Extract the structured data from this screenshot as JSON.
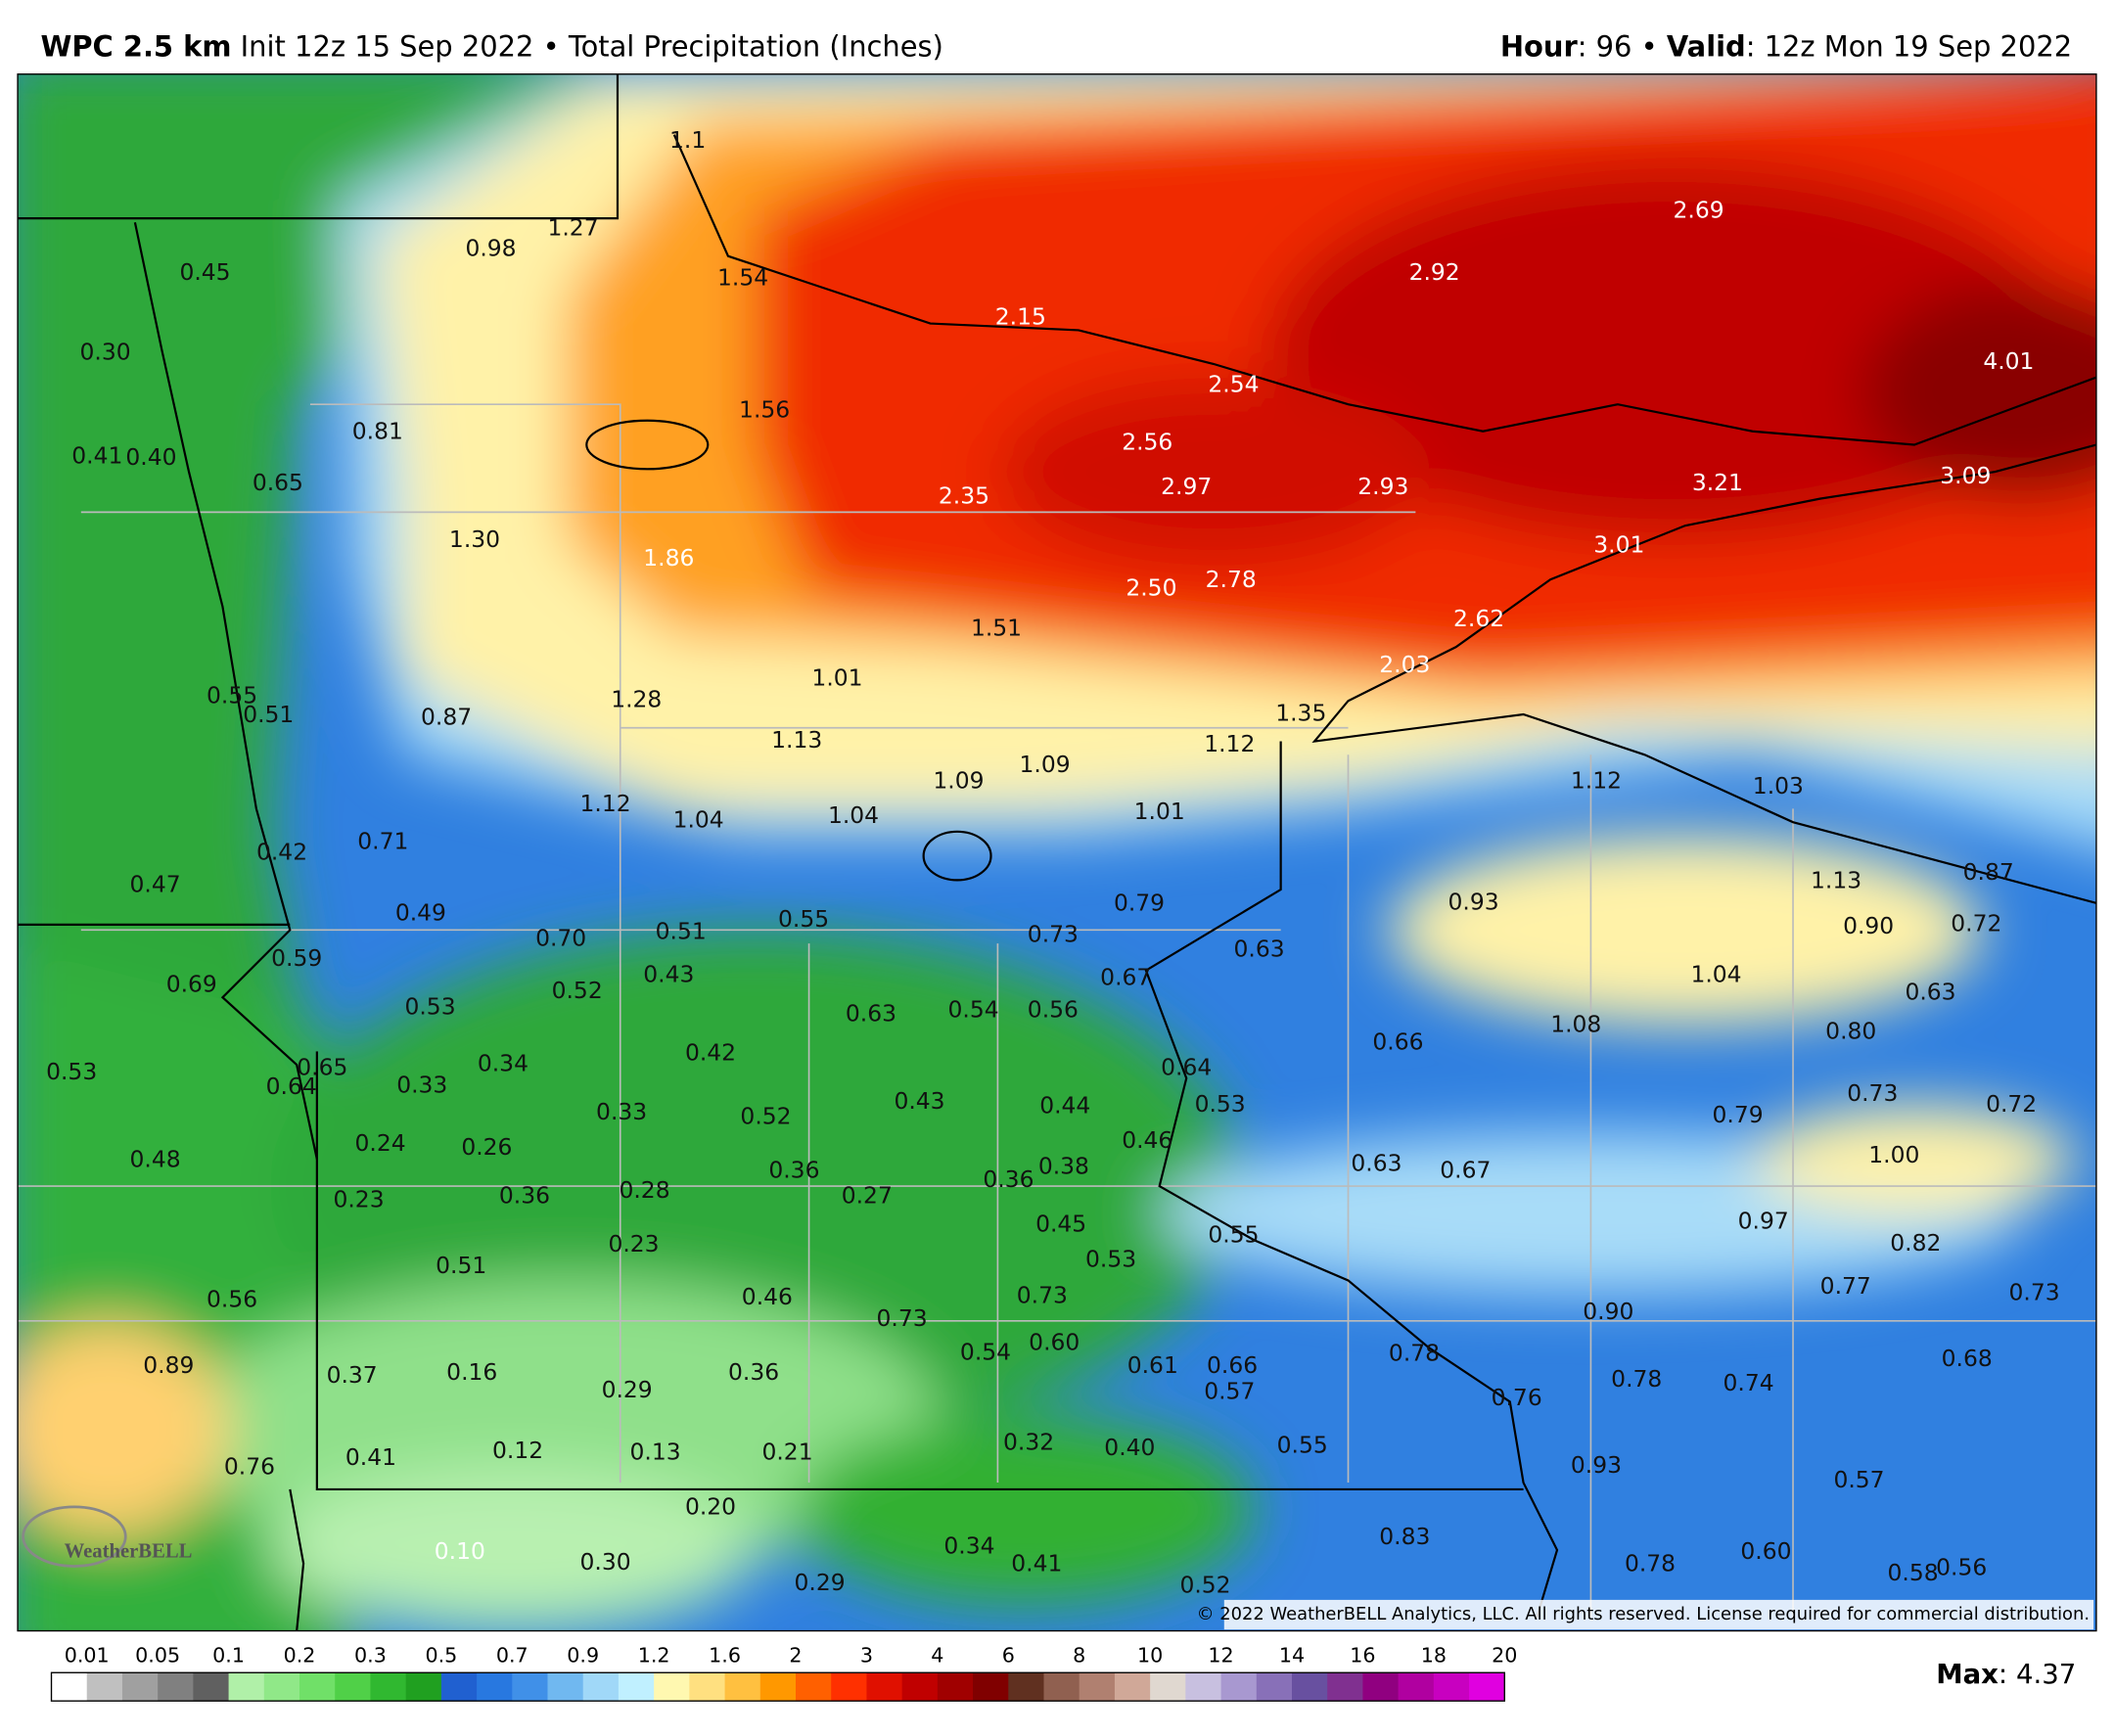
{
  "header": {
    "model": "WPC 2.5 km",
    "description": "Init 12z 15 Sep 2022 • Total Precipitation (Inches)",
    "hour_label": "Hour",
    "hour_value": ": 96 •",
    "valid_label": "Valid",
    "valid_value": ": 12z Mon 19 Sep 2022"
  },
  "map_labels": [
    "1.1",
    "0.45",
    "0.98",
    "1.27",
    "1.54",
    "2.15",
    "2.69",
    "2.92",
    "4.01",
    "2.54",
    "0.30",
    "0.81",
    "1.56",
    "2.56",
    "0.41",
    "0.40",
    "0.65",
    "2.35",
    "2.97",
    "2.93",
    "3.21",
    "3.09",
    "1.30",
    "1.86",
    "3.01",
    "2.50",
    "2.78",
    "2.62",
    "1.51",
    "1.01",
    "2.03",
    "0.55",
    "0.51",
    "0.87",
    "1.28",
    "1.35",
    "1.13",
    "1.12",
    "1.09",
    "1.09",
    "1.12",
    "1.03",
    "1.12",
    "1.04",
    "1.04",
    "1.01",
    "0.42",
    "0.71",
    "0.47",
    "0.79",
    "0.93",
    "1.13",
    "0.87",
    "0.49",
    "0.70",
    "0.51",
    "0.55",
    "0.73",
    "0.63",
    "0.90",
    "0.72",
    "0.59",
    "0.69",
    "0.52",
    "0.43",
    "0.67",
    "1.04",
    "0.63",
    "0.53",
    "0.63",
    "0.54",
    "0.56",
    "0.66",
    "1.08",
    "0.80",
    "0.53",
    "0.65",
    "0.64",
    "0.34",
    "0.33",
    "0.42",
    "0.64",
    "0.33",
    "0.52",
    "0.43",
    "0.44",
    "0.53",
    "0.73",
    "0.79",
    "0.72",
    "0.24",
    "0.26",
    "0.46",
    "0.48",
    "0.63",
    "0.67",
    "1.00",
    "0.36",
    "0.38",
    "0.36",
    "0.27",
    "0.36",
    "0.28",
    "0.23",
    "0.45",
    "0.97",
    "0.23",
    "0.55",
    "0.82",
    "0.53",
    "0.51",
    "0.46",
    "0.73",
    "0.56",
    "0.77",
    "0.73",
    "0.73",
    "0.90",
    "0.78",
    "0.89",
    "0.54",
    "0.60",
    "0.68",
    "0.37",
    "0.16",
    "0.29",
    "0.36",
    "0.61",
    "0.66",
    "0.57",
    "0.78",
    "0.74",
    "0.76",
    "0.32",
    "0.40",
    "0.55",
    "0.12",
    "0.13",
    "0.21",
    "0.41",
    "0.76",
    "0.93",
    "0.57",
    "0.20",
    "0.83",
    "0.34",
    "0.10",
    "0.30",
    "0.41",
    "0.78",
    "0.60",
    "0.58",
    "0.56",
    "0.29",
    "0.52"
  ],
  "logo": "WeatherBELL",
  "copyright": "© 2022 WeatherBELL Analytics, LLC. All rights reserved. License required for commercial distribution.",
  "legend": {
    "labels": [
      "0.01",
      "0.05",
      "0.1",
      "0.2",
      "0.3",
      "0.5",
      "0.7",
      "0.9",
      "1.2",
      "1.6",
      "2",
      "3",
      "4",
      "6",
      "8",
      "10",
      "12",
      "14",
      "16",
      "18",
      "20"
    ],
    "colors": [
      "#ffffff",
      "#c0c0c0",
      "#a0a0a0",
      "#808080",
      "#606060",
      "#b0f0a8",
      "#90e888",
      "#70e068",
      "#50d048",
      "#30b830",
      "#20a020",
      "#2060d0",
      "#2878e0",
      "#4090e8",
      "#70b8f0",
      "#a0d8f8",
      "#c0f0ff",
      "#fff8b0",
      "#ffe080",
      "#ffc040",
      "#ff9800",
      "#ff6000",
      "#ff3000",
      "#e01000",
      "#c00000",
      "#a00000",
      "#800000",
      "#603020",
      "#906050",
      "#b08070",
      "#d0a898",
      "#e0d8d0",
      "#c8c0e0",
      "#a898d0",
      "#8870b8",
      "#6850a0",
      "#803090",
      "#900080",
      "#b000a0",
      "#c800c0",
      "#e000e0"
    ]
  },
  "max": {
    "label": "Max",
    "value": ": 4.37"
  }
}
